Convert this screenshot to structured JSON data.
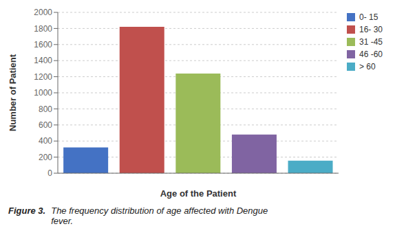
{
  "chart_data": {
    "type": "bar",
    "categories": [
      "0- 15",
      "16- 30",
      "31 -45",
      "46 -60",
      "> 60"
    ],
    "values": [
      320,
      1820,
      1240,
      480,
      155
    ],
    "colors": [
      "#4472C4",
      "#C0504D",
      "#9BBB59",
      "#8064A2",
      "#4BACC6"
    ],
    "xlabel": "Age of the Patient",
    "ylabel": "Number of Patient",
    "ylim": [
      0,
      2000
    ],
    "yticks": [
      0,
      200,
      400,
      600,
      800,
      1000,
      1200,
      1400,
      1600,
      1800,
      2000
    ],
    "grid": true,
    "legend": "upper right",
    "tick_labels": "y",
    "annotations": [
      "Figure 3.",
      "The frequency distribution of age affected with Dengue\nfever."
    ]
  }
}
